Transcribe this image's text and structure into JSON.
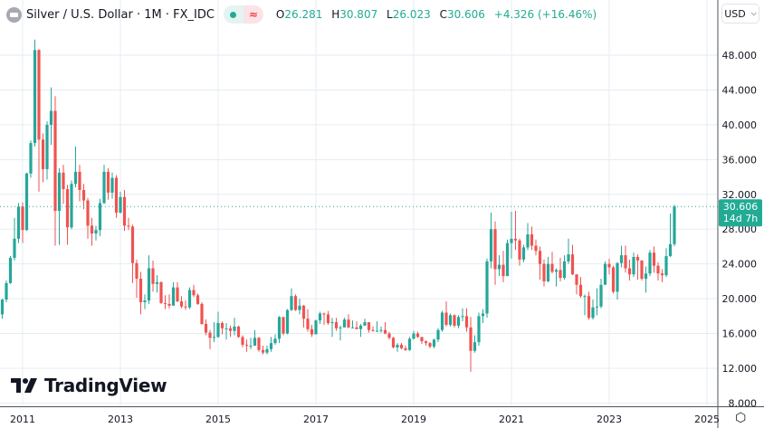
{
  "header": {
    "symbol_title": "Silver / U.S. Dollar · 1M · FX_IDC",
    "status_icons": [
      "market-open-dot-icon",
      "delayed-data-icon"
    ],
    "ohlc": {
      "o_label": "O",
      "o": "26.281",
      "h_label": "H",
      "h": "30.807",
      "l_label": "L",
      "l": "26.023",
      "c_label": "C",
      "c": "30.606",
      "change": "+4.326 (+16.46%)"
    }
  },
  "currency_selector": "USD",
  "last_price_badge": {
    "price": "30.606",
    "countdown": "14d 7h"
  },
  "brand": "TradingView",
  "colors": {
    "up": "#26a69a",
    "down": "#ef5350",
    "grid": "#e6edf3",
    "badge": "#22ab94"
  },
  "chart_data": {
    "type": "candlestick",
    "title": "Silver / U.S. Dollar · 1M · FX_IDC",
    "interval": "1M",
    "start": "2010-08",
    "first_open": 18.2,
    "close": [
      19.9,
      21.8,
      24.7,
      26.9,
      30.6,
      27.9,
      34.4,
      37.9,
      48.6,
      38.3,
      34.9,
      40.0,
      41.6,
      30.1,
      34.5,
      32.6,
      28.2,
      33.2,
      34.6,
      32.5,
      31.3,
      28.4,
      27.5,
      27.9,
      31.0,
      34.6,
      32.2,
      33.9,
      29.9,
      31.7,
      28.4,
      28.3,
      24.1,
      22.3,
      19.6,
      19.8,
      23.5,
      21.7,
      21.9,
      19.5,
      19.4,
      19.2,
      21.3,
      19.7,
      19.1,
      19.0,
      21.0,
      20.4,
      19.4,
      17.1,
      16.1,
      15.5,
      15.6,
      17.2,
      16.6,
      16.6,
      16.3,
      16.8,
      15.6,
      14.7,
      14.6,
      14.6,
      15.5,
      14.1,
      13.8,
      14.2,
      14.9,
      15.4,
      17.9,
      16.0,
      18.7,
      20.3,
      18.7,
      19.2,
      17.7,
      16.5,
      15.9,
      17.5,
      18.3,
      18.2,
      17.2,
      17.3,
      16.6,
      16.7,
      17.6,
      16.7,
      16.7,
      16.5,
      16.9,
      17.3,
      16.4,
      16.3,
      16.3,
      16.4,
      16.0,
      15.5,
      14.4,
      14.7,
      14.3,
      14.1,
      15.4,
      16.0,
      15.6,
      15.1,
      14.9,
      14.5,
      15.3,
      16.4,
      18.4,
      17.0,
      18.1,
      16.9,
      17.9,
      18.0,
      16.7,
      14.0,
      15.0,
      18.0,
      18.3,
      24.3,
      28.0,
      23.4,
      23.9,
      22.6,
      26.4,
      26.9,
      26.7,
      24.5,
      25.9,
      27.4,
      26.1,
      25.5,
      24.0,
      22.0,
      24.0,
      23.1,
      23.3,
      22.4,
      24.3,
      25.1,
      22.8,
      21.6,
      20.3,
      20.3,
      17.8,
      19.0,
      19.1,
      21.6,
      24.0,
      23.6,
      20.8,
      24.1,
      25.0,
      23.5,
      22.8,
      24.8,
      24.4,
      22.3,
      22.9,
      25.3,
      23.8,
      22.9,
      22.7,
      24.9,
      26.281,
      30.606
    ],
    "high": [
      20.0,
      22.1,
      24.9,
      29.3,
      31.0,
      31.1,
      34.5,
      38.2,
      49.8,
      48.7,
      39.0,
      40.4,
      44.3,
      43.3,
      35.0,
      35.4,
      33.1,
      33.6,
      37.5,
      35.4,
      33.2,
      31.6,
      29.3,
      28.4,
      31.5,
      35.4,
      35.0,
      34.5,
      34.2,
      32.3,
      32.5,
      29.3,
      28.5,
      24.5,
      23.1,
      20.5,
      25.0,
      24.4,
      22.7,
      22.0,
      20.4,
      20.5,
      21.9,
      21.9,
      20.3,
      19.8,
      21.3,
      21.6,
      20.6,
      19.6,
      17.6,
      16.4,
      17.3,
      18.5,
      17.4,
      17.2,
      16.9,
      17.8,
      16.9,
      15.8,
      15.3,
      15.5,
      16.4,
      15.6,
      14.6,
      14.6,
      15.6,
      15.9,
      18.0,
      17.8,
      18.8,
      21.2,
      20.5,
      20.0,
      19.3,
      18.8,
      17.0,
      17.6,
      18.5,
      18.4,
      18.6,
      17.8,
      17.8,
      16.9,
      17.8,
      18.2,
      17.5,
      17.4,
      17.1,
      17.7,
      17.2,
      16.8,
      17.4,
      16.8,
      17.3,
      16.2,
      15.6,
      14.9,
      14.9,
      14.6,
      15.6,
      16.3,
      16.2,
      15.6,
      15.2,
      15.0,
      15.4,
      16.6,
      18.6,
      19.7,
      18.3,
      18.2,
      18.1,
      18.9,
      18.9,
      17.9,
      15.8,
      18.4,
      18.8,
      24.6,
      29.9,
      28.9,
      25.0,
      25.5,
      26.8,
      30.0,
      30.1,
      26.9,
      26.2,
      28.7,
      28.3,
      26.8,
      26.0,
      24.5,
      24.8,
      25.4,
      23.5,
      24.7,
      25.0,
      26.9,
      26.2,
      22.8,
      22.5,
      20.5,
      20.8,
      19.9,
      21.2,
      22.3,
      24.3,
      24.6,
      23.8,
      24.2,
      26.1,
      26.1,
      24.5,
      25.3,
      25.1,
      24.1,
      23.7,
      25.6,
      26.0,
      24.2,
      23.4,
      25.8,
      29.8,
      30.807
    ],
    "low": [
      17.7,
      19.6,
      21.7,
      24.4,
      26.4,
      26.4,
      27.8,
      33.9,
      37.5,
      32.3,
      33.4,
      33.7,
      37.7,
      26.1,
      26.2,
      30.9,
      26.2,
      28.0,
      32.8,
      31.2,
      30.3,
      26.9,
      26.1,
      26.7,
      27.2,
      30.9,
      31.4,
      31.5,
      29.3,
      29.8,
      27.8,
      27.9,
      21.8,
      20.1,
      18.2,
      18.8,
      19.4,
      20.8,
      20.7,
      19.4,
      18.8,
      18.9,
      19.2,
      19.6,
      18.9,
      18.7,
      18.8,
      20.2,
      19.3,
      17.0,
      15.8,
      14.2,
      15.0,
      15.5,
      15.9,
      15.3,
      15.6,
      15.8,
      15.5,
      14.4,
      13.9,
      14.2,
      14.6,
      13.9,
      13.6,
      13.6,
      13.9,
      14.7,
      14.9,
      15.8,
      15.9,
      18.6,
      18.6,
      18.2,
      16.7,
      16.2,
      15.6,
      15.9,
      17.1,
      17.0,
      17.0,
      15.6,
      16.3,
      15.2,
      16.7,
      16.6,
      16.6,
      16.5,
      15.6,
      16.9,
      16.1,
      16.2,
      16.2,
      16.1,
      15.9,
      15.3,
      14.3,
      13.9,
      14.2,
      14.0,
      14.0,
      15.3,
      15.5,
      14.8,
      14.6,
      14.3,
      14.3,
      15.0,
      16.2,
      16.8,
      16.8,
      16.7,
      16.6,
      17.4,
      16.2,
      11.6,
      13.8,
      14.6,
      17.2,
      17.8,
      23.5,
      21.6,
      22.6,
      21.9,
      22.6,
      24.6,
      25.6,
      23.8,
      24.2,
      25.6,
      25.6,
      25.0,
      22.2,
      21.4,
      21.9,
      22.9,
      21.4,
      22.0,
      22.2,
      24.0,
      22.7,
      20.5,
      20.1,
      18.1,
      17.6,
      17.6,
      18.1,
      18.9,
      21.6,
      22.8,
      20.6,
      19.9,
      23.6,
      23.0,
      22.1,
      22.5,
      22.2,
      22.1,
      20.7,
      22.6,
      23.0,
      22.1,
      21.9,
      22.5,
      24.8,
      26.023
    ],
    "ylim": [
      8,
      50
    ],
    "y_ticks": [
      "8.000",
      "12.000",
      "16.000",
      "20.000",
      "24.000",
      "28.000",
      "32.000",
      "36.000",
      "40.000",
      "44.000",
      "48.000"
    ],
    "x_ticks": [
      "2011",
      "2013",
      "2015",
      "2017",
      "2019",
      "2021",
      "2023",
      "2025"
    ],
    "last_price": 30.606,
    "grid": true
  }
}
